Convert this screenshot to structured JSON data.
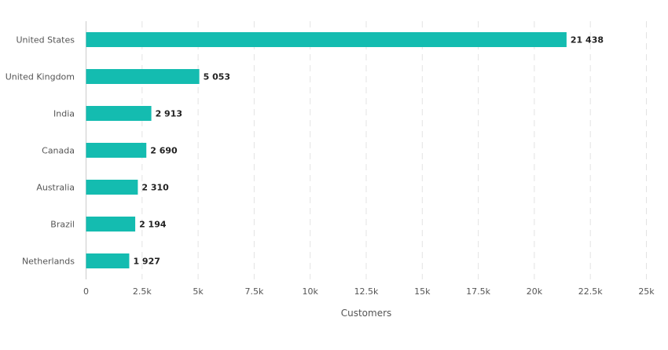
{
  "chart_data": {
    "type": "bar",
    "orientation": "horizontal",
    "categories": [
      "United States",
      "United Kingdom",
      "India",
      "Canada",
      "Australia",
      "Brazil",
      "Netherlands"
    ],
    "values": [
      21438,
      5053,
      2913,
      2690,
      2310,
      2194,
      1927
    ],
    "value_labels": [
      "21 438",
      "5 053",
      "2 913",
      "2 690",
      "2 310",
      "2 194",
      "1 927"
    ],
    "xlabel": "Customers",
    "ylabel": "",
    "xlim": [
      0,
      25000
    ],
    "xticks": [
      {
        "value": 0,
        "label": "0"
      },
      {
        "value": 2500,
        "label": "2.5k"
      },
      {
        "value": 5000,
        "label": "5k"
      },
      {
        "value": 7500,
        "label": "7.5k"
      },
      {
        "value": 10000,
        "label": "10k"
      },
      {
        "value": 12500,
        "label": "12.5k"
      },
      {
        "value": 15000,
        "label": "15k"
      },
      {
        "value": 17500,
        "label": "17.5k"
      },
      {
        "value": 20000,
        "label": "20k"
      },
      {
        "value": 22500,
        "label": "22.5k"
      },
      {
        "value": 25000,
        "label": "25k"
      }
    ],
    "grid": true,
    "bar_color": "#14bcb0"
  }
}
